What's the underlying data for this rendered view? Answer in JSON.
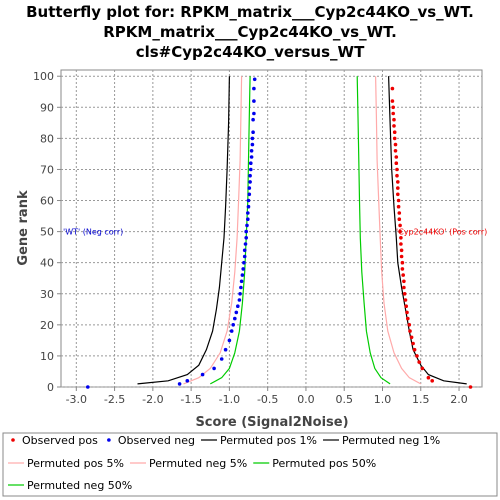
{
  "chart_data": {
    "type": "scatter",
    "title": [
      "Butterfly plot for: RPKM_matrix___Cyp2c44KO_vs_WT.",
      "RPKM_matrix___Cyp2c44KO_vs_WT.",
      "cls#Cyp2c44KO_versus_WT"
    ],
    "xlabel": "Score (Signal2Noise)",
    "ylabel": "Gene rank",
    "xlim": [
      -3.2,
      2.3
    ],
    "ylim": [
      0,
      102
    ],
    "x_ticks": [
      "-3.0",
      "-2.5",
      "-2.0",
      "-1.5",
      "-1.0",
      "-0.5",
      "0.0",
      "0.5",
      "1.0",
      "1.5",
      "2.0"
    ],
    "y_ticks": [
      "0",
      "10",
      "20",
      "30",
      "40",
      "50",
      "60",
      "70",
      "80",
      "90",
      "100"
    ],
    "grid": true,
    "grid_style": "dashed",
    "annotations": [
      {
        "text": "'WT' (Neg corr)",
        "x": -3.2,
        "y": 50,
        "color": "#0000cc"
      },
      {
        "text": "'Cyp2c44KO' (Pos corr)",
        "x": 1.15,
        "y": 50,
        "color": "#ee0000"
      }
    ],
    "series": [
      {
        "name": "Permuted pos 1%",
        "kind": "line",
        "color": "#000000",
        "x": [
          2.1,
          1.8,
          1.6,
          1.5,
          1.4,
          1.35,
          1.3,
          1.25,
          1.2,
          1.18,
          1.15,
          1.12,
          1.1,
          1.08
        ],
        "y": [
          1,
          2,
          4,
          7,
          12,
          18,
          25,
          32,
          40,
          48,
          58,
          70,
          85,
          100
        ]
      },
      {
        "name": "Permuted neg 1%",
        "kind": "line",
        "color": "#000000",
        "x": [
          -2.2,
          -1.8,
          -1.55,
          -1.4,
          -1.3,
          -1.22,
          -1.17,
          -1.13,
          -1.1,
          -1.07,
          -1.05,
          -1.03,
          -1.01,
          -1.0
        ],
        "y": [
          1,
          2,
          4,
          7,
          12,
          18,
          25,
          32,
          40,
          48,
          58,
          70,
          85,
          100
        ]
      },
      {
        "name": "Permuted pos 5%",
        "kind": "line",
        "color": "#ffaaaa",
        "x": [
          1.5,
          1.35,
          1.25,
          1.15,
          1.07,
          1.02,
          0.99,
          0.97,
          0.95,
          0.93,
          0.92,
          0.91
        ],
        "y": [
          1,
          3,
          6,
          11,
          18,
          27,
          37,
          48,
          60,
          73,
          87,
          100
        ]
      },
      {
        "name": "Permuted neg 5%",
        "kind": "line",
        "color": "#ffaaaa",
        "x": [
          -1.6,
          -1.4,
          -1.25,
          -1.12,
          -1.03,
          -0.97,
          -0.93,
          -0.9,
          -0.88,
          -0.86,
          -0.85,
          -0.84
        ],
        "y": [
          1,
          3,
          6,
          11,
          18,
          27,
          37,
          48,
          60,
          73,
          87,
          100
        ]
      },
      {
        "name": "Permuted pos 50%",
        "kind": "line",
        "color": "#00cc00",
        "x": [
          1.1,
          0.98,
          0.9,
          0.84,
          0.79,
          0.76,
          0.73,
          0.71,
          0.7,
          0.69,
          0.68,
          0.67
        ],
        "y": [
          1,
          3,
          6,
          11,
          18,
          27,
          37,
          48,
          60,
          73,
          87,
          100
        ]
      },
      {
        "name": "Permuted neg 50%",
        "kind": "line",
        "color": "#00cc00",
        "x": [
          -1.25,
          -1.1,
          -1.0,
          -0.93,
          -0.87,
          -0.83,
          -0.8,
          -0.78,
          -0.76,
          -0.75,
          -0.74,
          -0.73
        ],
        "y": [
          1,
          3,
          6,
          11,
          18,
          27,
          37,
          48,
          60,
          73,
          87,
          100
        ]
      },
      {
        "name": "Observed pos",
        "kind": "points",
        "color": "#ee0000",
        "x": [
          2.15,
          1.65,
          1.6,
          1.52,
          1.48,
          1.45,
          1.42,
          1.4,
          1.38,
          1.36,
          1.35,
          1.33,
          1.32,
          1.31,
          1.3,
          1.29,
          1.28,
          1.28,
          1.27,
          1.26,
          1.26,
          1.25,
          1.25,
          1.24,
          1.24,
          1.23,
          1.23,
          1.22,
          1.22,
          1.21,
          1.21,
          1.2,
          1.2,
          1.2,
          1.19,
          1.19,
          1.18,
          1.18,
          1.17,
          1.17,
          1.16,
          1.16,
          1.15,
          1.15,
          1.14,
          1.14,
          1.13,
          1.13
        ],
        "y": [
          0,
          2,
          3,
          6,
          8,
          10,
          12,
          14,
          16,
          18,
          20,
          22,
          24,
          26,
          28,
          30,
          32,
          34,
          36,
          38,
          40,
          42,
          44,
          46,
          48,
          50,
          52,
          54,
          56,
          58,
          60,
          62,
          64,
          66,
          68,
          70,
          72,
          74,
          76,
          78,
          80,
          82,
          84,
          86,
          88,
          90,
          92,
          96
        ]
      },
      {
        "name": "Observed neg",
        "kind": "points",
        "color": "#0000ee",
        "x": [
          -2.85,
          -1.65,
          -1.55,
          -1.35,
          -1.2,
          -1.1,
          -1.05,
          -1.0,
          -0.97,
          -0.95,
          -0.93,
          -0.91,
          -0.89,
          -0.87,
          -0.86,
          -0.85,
          -0.84,
          -0.83,
          -0.82,
          -0.81,
          -0.8,
          -0.8,
          -0.79,
          -0.78,
          -0.78,
          -0.77,
          -0.76,
          -0.76,
          -0.75,
          -0.75,
          -0.74,
          -0.74,
          -0.73,
          -0.73,
          -0.72,
          -0.72,
          -0.71,
          -0.71,
          -0.7,
          -0.7,
          -0.69,
          -0.69,
          -0.68,
          -0.68,
          -0.68,
          -0.67
        ],
        "y": [
          0,
          1,
          2,
          4,
          6,
          9,
          12,
          15,
          18,
          20,
          22,
          24,
          26,
          28,
          30,
          32,
          34,
          36,
          38,
          40,
          42,
          44,
          46,
          48,
          50,
          52,
          54,
          56,
          58,
          60,
          62,
          64,
          66,
          68,
          70,
          72,
          74,
          76,
          78,
          80,
          82,
          86,
          88,
          92,
          96,
          99
        ]
      }
    ],
    "legend": {
      "placement": "bottom",
      "entries": [
        {
          "label": "Observed pos",
          "kind": "point",
          "color": "#ee0000"
        },
        {
          "label": "Observed neg",
          "kind": "point",
          "color": "#0000ee"
        },
        {
          "label": "Permuted pos 1%",
          "kind": "line",
          "color": "#000000"
        },
        {
          "label": "Permuted neg 1%",
          "kind": "line",
          "color": "#000000"
        },
        {
          "label": "Permuted pos 5%",
          "kind": "line",
          "color": "#ffaaaa"
        },
        {
          "label": "Permuted neg 5%",
          "kind": "line",
          "color": "#ffaaaa"
        },
        {
          "label": "Permuted pos 50%",
          "kind": "line",
          "color": "#00cc00"
        },
        {
          "label": "Permuted neg 50%",
          "kind": "line",
          "color": "#00cc00"
        }
      ]
    }
  }
}
